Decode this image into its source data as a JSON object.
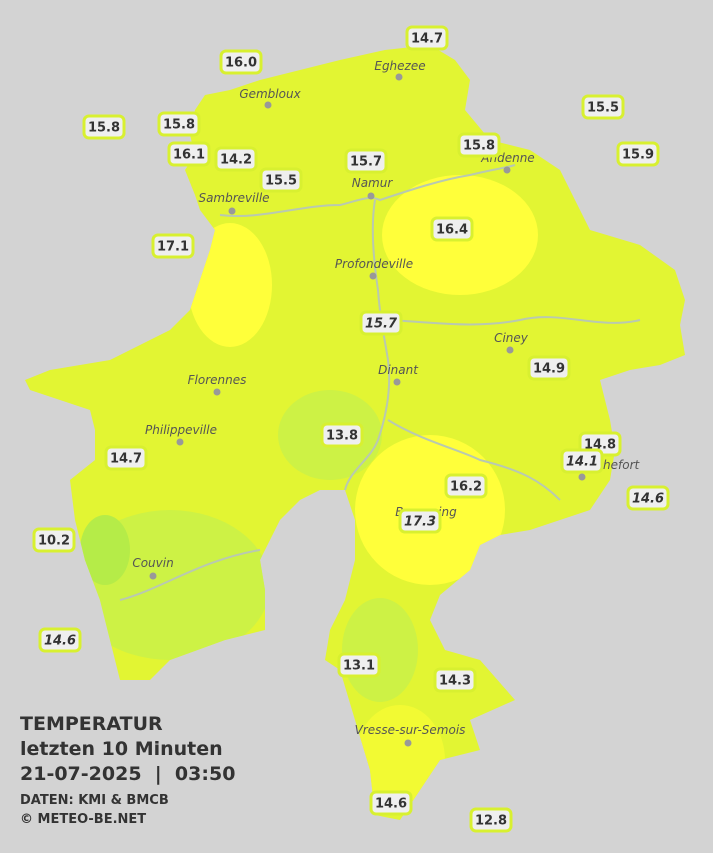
{
  "legend": {
    "title": "TEMPERATUR",
    "period": "letzten 10 Minuten",
    "datetime": "21-07-2025  |  03:50",
    "source": "DATEN: KMI & BMCB",
    "copyright": "© METEO-BE.NET"
  },
  "towns": [
    "Eghezee",
    "Gembloux",
    "Andenne",
    "Namur",
    "Sambreville",
    "Profondeville",
    "Ciney",
    "Dinant",
    "Florennes",
    "Philippeville",
    "Beauraing",
    "Rochefort",
    "Couvin",
    "Vresse-sur-Semois"
  ],
  "stations": [
    {
      "value": "14.7",
      "italic": false
    },
    {
      "value": "16.0",
      "italic": false
    },
    {
      "value": "15.5",
      "italic": false
    },
    {
      "value": "15.8",
      "italic": false
    },
    {
      "value": "15.8",
      "italic": false
    },
    {
      "value": "16.1",
      "italic": false
    },
    {
      "value": "14.2",
      "italic": false
    },
    {
      "value": "15.7",
      "italic": false
    },
    {
      "value": "15.8",
      "italic": false
    },
    {
      "value": "15.9",
      "italic": false
    },
    {
      "value": "15.5",
      "italic": false
    },
    {
      "value": "17.1",
      "italic": false
    },
    {
      "value": "16.4",
      "italic": false
    },
    {
      "value": "15.7",
      "italic": true
    },
    {
      "value": "14.9",
      "italic": false
    },
    {
      "value": "13.8",
      "italic": false
    },
    {
      "value": "14.8",
      "italic": false
    },
    {
      "value": "14.1",
      "italic": true
    },
    {
      "value": "14.7",
      "italic": false
    },
    {
      "value": "14.6",
      "italic": true
    },
    {
      "value": "16.2",
      "italic": false
    },
    {
      "value": "17.3",
      "italic": true
    },
    {
      "value": "10.2",
      "italic": false
    },
    {
      "value": "14.6",
      "italic": true
    },
    {
      "value": "13.1",
      "italic": false
    },
    {
      "value": "14.3",
      "italic": false
    },
    {
      "value": "14.6",
      "italic": false
    },
    {
      "value": "12.8",
      "italic": false
    }
  ]
}
